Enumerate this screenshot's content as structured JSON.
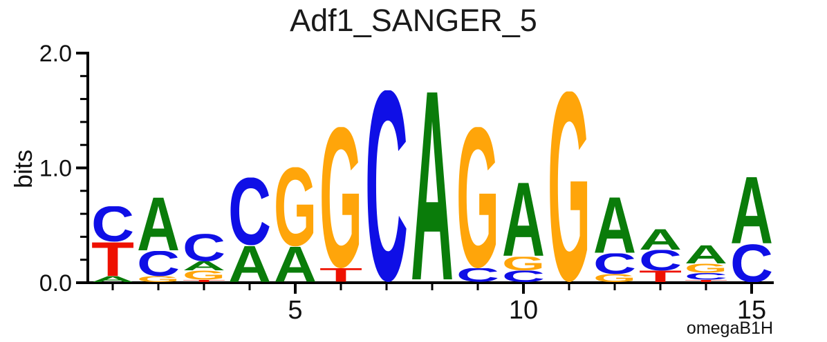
{
  "title": "Adf1_SANGER_5",
  "colors": {
    "A": "#0a7c0a",
    "C": "#0f0fe6",
    "G": "#ffa50a",
    "T": "#ee1100"
  },
  "chart_data": {
    "type": "sequence_logo",
    "title": "Adf1_SANGER_5",
    "xlabel": "",
    "ylabel": "bits",
    "ylim": [
      0,
      2.0
    ],
    "y_major_ticks": [
      0,
      1,
      2
    ],
    "y_tick_labels": [
      "0.0",
      "1.0",
      "2.0"
    ],
    "y_minor_step": 0.2,
    "num_positions": 15,
    "x_labeled_ticks": [
      5,
      10,
      15
    ],
    "x_tick_labels": [
      "5",
      "10",
      "15"
    ],
    "watermark": "omegaB1H",
    "positions": [
      {
        "pos": 1,
        "stack": [
          {
            "base": "C",
            "bits": 0.31
          },
          {
            "base": "T",
            "bits": 0.3
          },
          {
            "base": "A",
            "bits": 0.05
          }
        ]
      },
      {
        "pos": 2,
        "stack": [
          {
            "base": "A",
            "bits": 0.47
          },
          {
            "base": "C",
            "bits": 0.22
          },
          {
            "base": "G",
            "bits": 0.05
          }
        ]
      },
      {
        "pos": 3,
        "stack": [
          {
            "base": "C",
            "bits": 0.24
          },
          {
            "base": "A",
            "bits": 0.08
          },
          {
            "base": "G",
            "bits": 0.08
          },
          {
            "base": "T",
            "bits": 0.02
          }
        ]
      },
      {
        "pos": 4,
        "stack": [
          {
            "base": "C",
            "bits": 0.59
          },
          {
            "base": "A",
            "bits": 0.32
          }
        ]
      },
      {
        "pos": 5,
        "stack": [
          {
            "base": "G",
            "bits": 0.69
          },
          {
            "base": "A",
            "bits": 0.31
          }
        ]
      },
      {
        "pos": 6,
        "stack": [
          {
            "base": "G",
            "bits": 1.23
          },
          {
            "base": "T",
            "bits": 0.12
          }
        ]
      },
      {
        "pos": 7,
        "stack": [
          {
            "base": "C",
            "bits": 1.67
          }
        ]
      },
      {
        "pos": 8,
        "stack": [
          {
            "base": "A",
            "bits": 1.67
          }
        ]
      },
      {
        "pos": 9,
        "stack": [
          {
            "base": "G",
            "bits": 1.23
          },
          {
            "base": "C",
            "bits": 0.12
          }
        ]
      },
      {
        "pos": 10,
        "stack": [
          {
            "base": "A",
            "bits": 0.65
          },
          {
            "base": "G",
            "bits": 0.12
          },
          {
            "base": "C",
            "bits": 0.1
          }
        ]
      },
      {
        "pos": 11,
        "stack": [
          {
            "base": "G",
            "bits": 1.66
          }
        ]
      },
      {
        "pos": 12,
        "stack": [
          {
            "base": "A",
            "bits": 0.49
          },
          {
            "base": "C",
            "bits": 0.18
          },
          {
            "base": "G",
            "bits": 0.07
          }
        ]
      },
      {
        "pos": 13,
        "stack": [
          {
            "base": "A",
            "bits": 0.18
          },
          {
            "base": "C",
            "bits": 0.18
          },
          {
            "base": "T",
            "bits": 0.1
          }
        ]
      },
      {
        "pos": 14,
        "stack": [
          {
            "base": "A",
            "bits": 0.16
          },
          {
            "base": "G",
            "bits": 0.08
          },
          {
            "base": "C",
            "bits": 0.06
          },
          {
            "base": "T",
            "bits": 0.02
          }
        ]
      },
      {
        "pos": 15,
        "stack": [
          {
            "base": "A",
            "bits": 0.59
          },
          {
            "base": "C",
            "bits": 0.33
          }
        ]
      }
    ]
  }
}
